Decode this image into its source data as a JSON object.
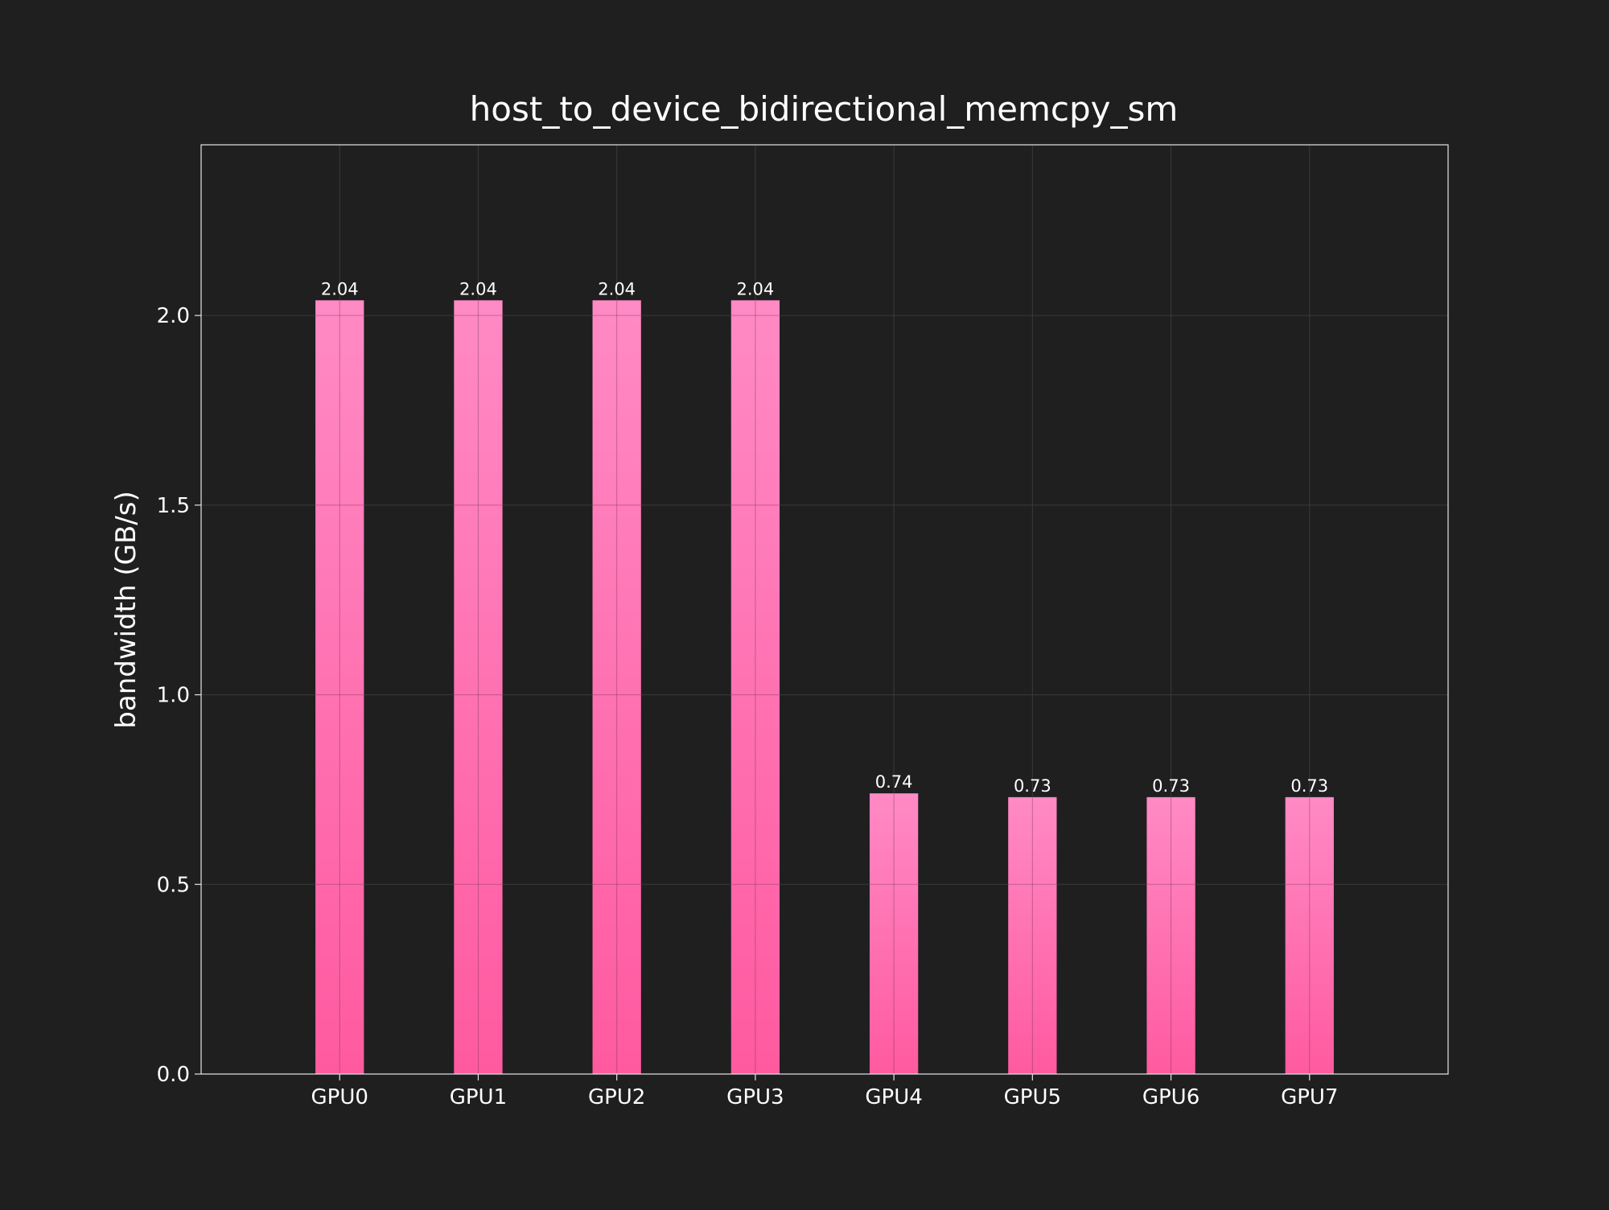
{
  "chart_data": {
    "type": "bar",
    "title": "host_to_device_bidirectional_memcpy_sm",
    "xlabel": "",
    "ylabel": "bandwidth (GB/s)",
    "categories": [
      "GPU0",
      "GPU1",
      "GPU2",
      "GPU3",
      "GPU4",
      "GPU5",
      "GPU6",
      "GPU7"
    ],
    "values": [
      2.04,
      2.04,
      2.04,
      2.04,
      0.74,
      0.73,
      0.73,
      0.73
    ],
    "value_labels": [
      "2.04",
      "2.04",
      "2.04",
      "2.04",
      "0.74",
      "0.73",
      "0.73",
      "0.73"
    ],
    "ylim": [
      0,
      2.45
    ],
    "yticks": [
      0.0,
      0.5,
      1.0,
      1.5,
      2.0
    ],
    "ytick_labels": [
      "0.0",
      "0.5",
      "1.0",
      "1.5",
      "2.0"
    ],
    "grid": true,
    "legend": "none",
    "colors": {
      "background": "#1f1f1f",
      "bar_top": "#ff8ac4",
      "bar_bottom": "#ff5aa0",
      "grid": "#3a3a3a",
      "axes": "#e6e6e6",
      "text": "#ffffff"
    }
  }
}
